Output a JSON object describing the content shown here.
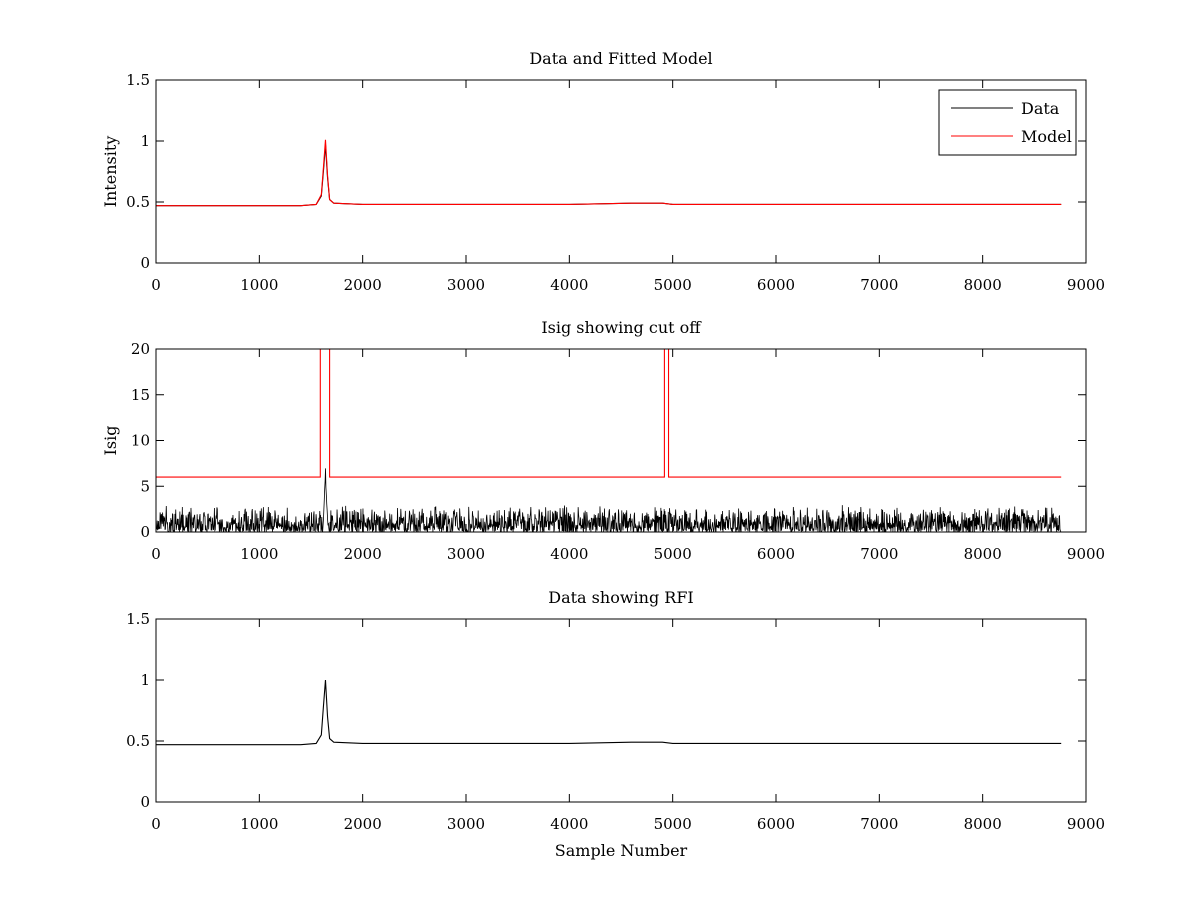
{
  "chart_data": [
    {
      "type": "line",
      "title": "Data and Fitted Model",
      "xlabel": "",
      "ylabel": "Intensity",
      "xlim": [
        0,
        9000
      ],
      "ylim": [
        0,
        1.5
      ],
      "xticks": [
        0,
        1000,
        2000,
        3000,
        4000,
        5000,
        6000,
        7000,
        8000,
        9000
      ],
      "yticks": [
        0,
        0.5,
        1,
        1.5
      ],
      "xtick_labels": [
        "0",
        "1000",
        "2000",
        "3000",
        "4000",
        "5000",
        "6000",
        "7000",
        "8000",
        "9000"
      ],
      "ytick_labels": [
        "0",
        "0.5",
        "1",
        "1.5"
      ],
      "grid": false,
      "legend": {
        "placement": "top-right",
        "entries": [
          "Data",
          "Model"
        ]
      },
      "series": [
        {
          "name": "Data",
          "color": "#000000",
          "x": [
            0,
            500,
            1000,
            1400,
            1550,
            1600,
            1620,
            1640,
            1660,
            1680,
            1720,
            2000,
            3000,
            4000,
            4600,
            4900,
            5000,
            6000,
            7000,
            8000,
            8760
          ],
          "y": [
            0.47,
            0.47,
            0.47,
            0.47,
            0.48,
            0.55,
            0.75,
            0.97,
            0.7,
            0.52,
            0.49,
            0.48,
            0.48,
            0.48,
            0.49,
            0.49,
            0.48,
            0.48,
            0.48,
            0.48,
            0.48
          ]
        },
        {
          "name": "Model",
          "color": "#ff0000",
          "x": [
            0,
            500,
            1000,
            1400,
            1550,
            1600,
            1620,
            1640,
            1660,
            1680,
            1720,
            2000,
            3000,
            4000,
            4600,
            4900,
            5000,
            6000,
            7000,
            8000,
            8760
          ],
          "y": [
            0.47,
            0.47,
            0.47,
            0.47,
            0.48,
            0.56,
            0.78,
            1.01,
            0.72,
            0.52,
            0.49,
            0.48,
            0.48,
            0.48,
            0.49,
            0.49,
            0.48,
            0.48,
            0.48,
            0.48,
            0.48
          ]
        }
      ]
    },
    {
      "type": "line",
      "title": "Isig showing cut off",
      "xlabel": "",
      "ylabel": "Isig",
      "xlim": [
        0,
        9000
      ],
      "ylim": [
        0,
        20
      ],
      "xticks": [
        0,
        1000,
        2000,
        3000,
        4000,
        5000,
        6000,
        7000,
        8000,
        9000
      ],
      "yticks": [
        0,
        5,
        10,
        15,
        20
      ],
      "xtick_labels": [
        "0",
        "1000",
        "2000",
        "3000",
        "4000",
        "5000",
        "6000",
        "7000",
        "8000",
        "9000"
      ],
      "ytick_labels": [
        "0",
        "5",
        "10",
        "15",
        "20"
      ],
      "grid": false,
      "series": [
        {
          "color": "#000000",
          "kind": "noise",
          "x_range": [
            0,
            8760
          ],
          "typical_max": 2.5,
          "peak": {
            "x": 1640,
            "y": 7.2
          }
        },
        {
          "color": "#ff0000",
          "x": [
            0,
            1590,
            1590,
            1680,
            1680,
            4920,
            4920,
            4960,
            4960,
            8760
          ],
          "y": [
            6,
            6,
            20,
            20,
            6,
            6,
            20,
            20,
            6,
            6
          ]
        }
      ]
    },
    {
      "type": "line",
      "title": "Data showing RFI",
      "xlabel": "Sample Number",
      "ylabel": "",
      "xlim": [
        0,
        9000
      ],
      "ylim": [
        0,
        1.5
      ],
      "xticks": [
        0,
        1000,
        2000,
        3000,
        4000,
        5000,
        6000,
        7000,
        8000,
        9000
      ],
      "yticks": [
        0,
        0.5,
        1,
        1.5
      ],
      "xtick_labels": [
        "0",
        "1000",
        "2000",
        "3000",
        "4000",
        "5000",
        "6000",
        "7000",
        "8000",
        "9000"
      ],
      "ytick_labels": [
        "0",
        "0.5",
        "1",
        "1.5"
      ],
      "grid": false,
      "series": [
        {
          "color": "#000000",
          "x": [
            0,
            500,
            1000,
            1400,
            1550,
            1600,
            1620,
            1640,
            1660,
            1680,
            1720,
            2000,
            3000,
            4000,
            4600,
            4900,
            5000,
            6000,
            7000,
            8000,
            8760
          ],
          "y": [
            0.47,
            0.47,
            0.47,
            0.47,
            0.48,
            0.55,
            0.78,
            1.0,
            0.7,
            0.52,
            0.49,
            0.48,
            0.48,
            0.48,
            0.49,
            0.49,
            0.48,
            0.48,
            0.48,
            0.48,
            0.48
          ]
        }
      ]
    }
  ]
}
